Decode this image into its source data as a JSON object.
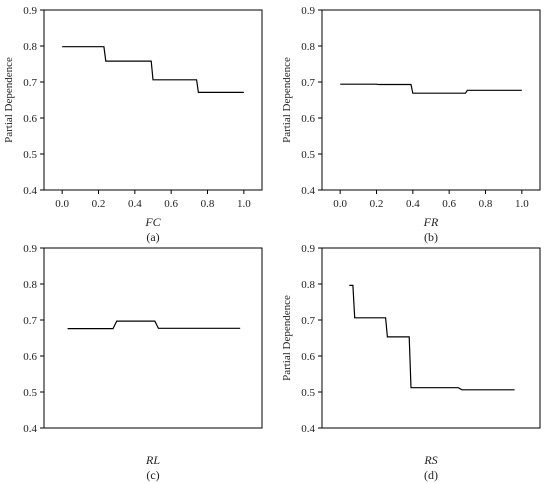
{
  "chart_data": [
    {
      "type": "line",
      "panel_label": "(a)",
      "xlabel": "FC",
      "ylabel": "Partial Dependence",
      "xlim": [
        -0.1,
        1.1
      ],
      "ylim": [
        0.4,
        0.9
      ],
      "xticks": [
        0.0,
        0.2,
        0.4,
        0.6,
        0.8,
        1.0
      ],
      "xtick_labels": [
        "0.0",
        "0.2",
        "0.4",
        "0.6",
        "0.8",
        "1.0"
      ],
      "yticks": [
        0.4,
        0.5,
        0.6,
        0.7,
        0.8,
        0.9
      ],
      "ytick_labels": [
        "0.4",
        "0.5",
        "0.6",
        "0.7",
        "0.8",
        "0.9"
      ],
      "grid": false,
      "x": [
        0.0,
        0.23,
        0.24,
        0.49,
        0.5,
        0.74,
        0.75,
        1.0
      ],
      "y": [
        0.798,
        0.798,
        0.758,
        0.758,
        0.706,
        0.706,
        0.671,
        0.671
      ]
    },
    {
      "type": "line",
      "panel_label": "(b)",
      "xlabel": "FR",
      "ylabel": "Partial Dependence",
      "xlim": [
        -0.1,
        1.1
      ],
      "ylim": [
        0.4,
        0.9
      ],
      "xticks": [
        0.0,
        0.2,
        0.4,
        0.6,
        0.8,
        1.0
      ],
      "xtick_labels": [
        "0.0",
        "0.2",
        "0.4",
        "0.6",
        "0.8",
        "1.0"
      ],
      "yticks": [
        0.4,
        0.5,
        0.6,
        0.7,
        0.8,
        0.9
      ],
      "ytick_labels": [
        "0.4",
        "0.5",
        "0.6",
        "0.7",
        "0.8",
        "0.9"
      ],
      "grid": false,
      "x": [
        0.0,
        0.2,
        0.21,
        0.39,
        0.4,
        0.69,
        0.7,
        1.0
      ],
      "y": [
        0.694,
        0.694,
        0.693,
        0.693,
        0.669,
        0.669,
        0.677,
        0.677
      ]
    },
    {
      "type": "line",
      "panel_label": "(c)",
      "xlabel": "RL",
      "ylabel": "",
      "xlim": [
        -0.1,
        1.1
      ],
      "ylim": [
        0.4,
        0.9
      ],
      "xticks": [],
      "xtick_labels": [],
      "yticks": [
        0.4,
        0.5,
        0.6,
        0.7,
        0.8,
        0.9
      ],
      "ytick_labels": [
        "0.4",
        "0.5",
        "0.6",
        "0.7",
        "0.8",
        "0.9"
      ],
      "grid": false,
      "x": [
        0.03,
        0.28,
        0.3,
        0.51,
        0.53,
        0.98
      ],
      "y": [
        0.676,
        0.676,
        0.697,
        0.697,
        0.677,
        0.677
      ]
    },
    {
      "type": "line",
      "panel_label": "(d)",
      "xlabel": "RS",
      "ylabel": "Partial Dependence",
      "xlim": [
        -0.1,
        1.1
      ],
      "ylim": [
        0.4,
        0.9
      ],
      "xticks": [],
      "xtick_labels": [],
      "yticks": [
        0.4,
        0.5,
        0.6,
        0.7,
        0.8,
        0.9
      ],
      "ytick_labels": [
        "0.4",
        "0.5",
        "0.6",
        "0.7",
        "0.8",
        "0.9"
      ],
      "grid": false,
      "x": [
        0.05,
        0.07,
        0.08,
        0.25,
        0.26,
        0.38,
        0.39,
        0.65,
        0.67,
        0.96
      ],
      "y": [
        0.796,
        0.796,
        0.706,
        0.706,
        0.653,
        0.653,
        0.512,
        0.512,
        0.506,
        0.506
      ]
    }
  ]
}
